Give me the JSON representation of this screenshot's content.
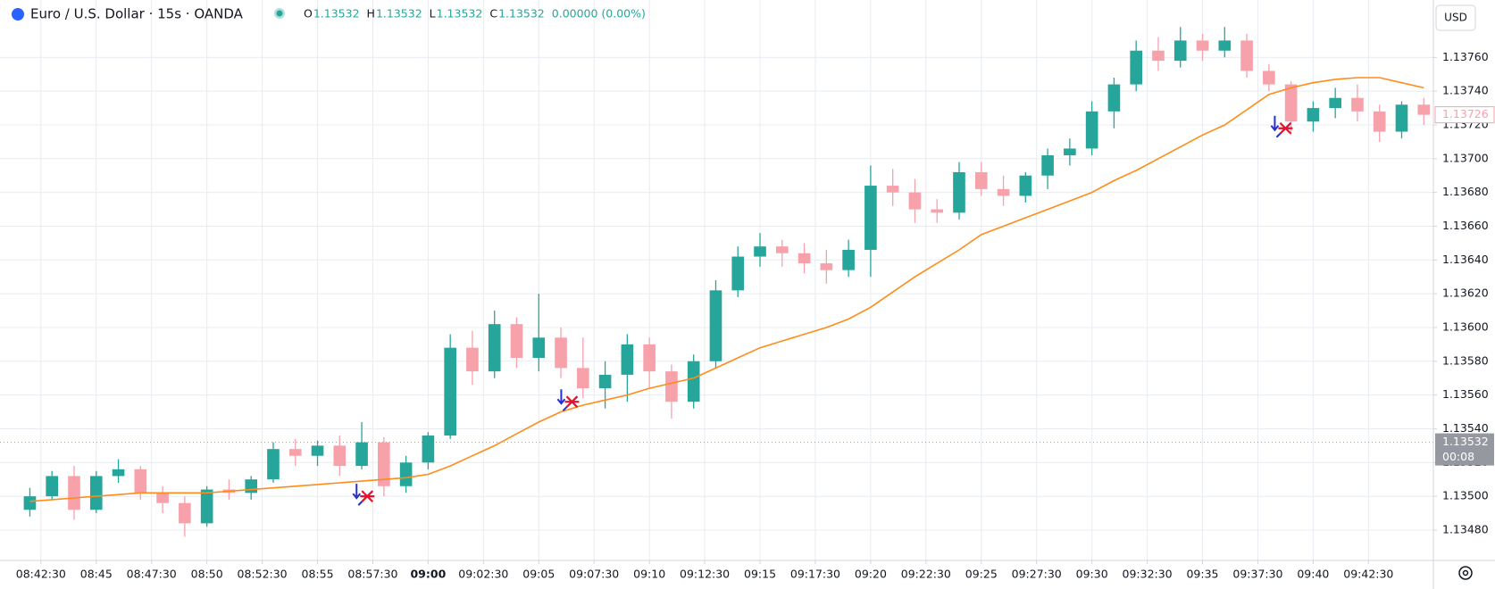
{
  "chart_data": {
    "type": "candlestick",
    "title": "Euro / U.S. Dollar · 15s · OANDA",
    "ohlc_header": [
      {
        "label": "O",
        "value": 1.13532
      },
      {
        "label": "H",
        "value": 1.13532
      },
      {
        "label": "L",
        "value": 1.13532
      },
      {
        "label": "C",
        "value": 1.13532
      }
    ],
    "change": "0.00000 (0.00%)",
    "currency": "USD",
    "up_color": "#26a69a",
    "down_color": "#f7a1ab",
    "xlim": [
      "08:40:39",
      "09:45:26"
    ],
    "ylim": [
      1.13462,
      1.13794
    ],
    "grid": true,
    "xticks": [
      "08:42:30",
      "08:45",
      "08:47:30",
      "08:50",
      "08:52:30",
      "08:55",
      "08:57:30",
      "09:00",
      "09:02:30",
      "09:05",
      "09:07:30",
      "09:10",
      "09:12:30",
      "09:15",
      "09:17:30",
      "09:20",
      "09:22:30",
      "09:25",
      "09:27:30",
      "09:30",
      "09:32:30",
      "09:35",
      "09:37:30",
      "09:40",
      "09:42:30"
    ],
    "yticks": [
      {
        "value": 1.1348,
        "label": "1.13480"
      },
      {
        "value": 1.135,
        "label": "1.13500"
      },
      {
        "value": 1.1352,
        "label": "1.13520"
      },
      {
        "value": 1.1354,
        "label": "1.13540"
      },
      {
        "value": 1.1356,
        "label": "1.13560"
      },
      {
        "value": 1.1358,
        "label": "1.13580"
      },
      {
        "value": 1.136,
        "label": "1.13600"
      },
      {
        "value": 1.1362,
        "label": "1.13620"
      },
      {
        "value": 1.1364,
        "label": "1.13640"
      },
      {
        "value": 1.1366,
        "label": "1.13660"
      },
      {
        "value": 1.1368,
        "label": "1.13680"
      },
      {
        "value": 1.137,
        "label": "1.13700"
      },
      {
        "value": 1.1372,
        "label": "1.13720"
      },
      {
        "value": 1.1374,
        "label": "1.13740"
      },
      {
        "value": 1.1376,
        "label": "1.13760"
      }
    ],
    "candles": {
      "x": [
        "08:42",
        "08:43",
        "08:44",
        "08:45",
        "08:46",
        "08:47",
        "08:48",
        "08:49",
        "08:50",
        "08:51",
        "08:52",
        "08:53",
        "08:54",
        "08:55",
        "08:56",
        "08:57",
        "08:58",
        "08:59",
        "09:00",
        "09:01",
        "09:02",
        "09:03",
        "09:04",
        "09:05",
        "09:06",
        "09:07",
        "09:08",
        "09:09",
        "09:10",
        "09:11",
        "09:12",
        "09:13",
        "09:14",
        "09:15",
        "09:16",
        "09:17",
        "09:18",
        "09:19",
        "09:20",
        "09:21",
        "09:22",
        "09:23",
        "09:24",
        "09:25",
        "09:26",
        "09:27",
        "09:28",
        "09:29",
        "09:30",
        "09:31",
        "09:32",
        "09:33",
        "09:34",
        "09:35",
        "09:36",
        "09:37",
        "09:38",
        "09:39",
        "09:40",
        "09:41",
        "09:42",
        "09:43",
        "09:44",
        "09:45"
      ],
      "open": [
        1.13492,
        1.135,
        1.13512,
        1.13492,
        1.13512,
        1.13516,
        1.13502,
        1.13496,
        1.13484,
        1.13504,
        1.13502,
        1.1351,
        1.13528,
        1.13524,
        1.1353,
        1.13518,
        1.13532,
        1.13506,
        1.1352,
        1.13536,
        1.13588,
        1.13574,
        1.13602,
        1.13582,
        1.13594,
        1.13576,
        1.13564,
        1.13572,
        1.1359,
        1.13574,
        1.13556,
        1.1358,
        1.13622,
        1.13642,
        1.13648,
        1.13644,
        1.13638,
        1.13634,
        1.13646,
        1.13684,
        1.1368,
        1.1367,
        1.13668,
        1.13692,
        1.13682,
        1.13678,
        1.1369,
        1.13702,
        1.13706,
        1.13728,
        1.13744,
        1.13764,
        1.13758,
        1.1377,
        1.13764,
        1.1377,
        1.13752,
        1.13744,
        1.13722,
        1.1373,
        1.13736,
        1.13728,
        1.13716,
        1.13732
      ],
      "high": [
        1.13505,
        1.13515,
        1.13518,
        1.13515,
        1.13522,
        1.13518,
        1.13506,
        1.135,
        1.13506,
        1.1351,
        1.13512,
        1.13532,
        1.13534,
        1.13533,
        1.13536,
        1.13544,
        1.13535,
        1.13524,
        1.13538,
        1.13596,
        1.13598,
        1.1361,
        1.13606,
        1.1362,
        1.136,
        1.13594,
        1.1358,
        1.13596,
        1.13594,
        1.13578,
        1.13584,
        1.13628,
        1.13648,
        1.13656,
        1.13652,
        1.1365,
        1.13646,
        1.13652,
        1.13696,
        1.13694,
        1.13688,
        1.13676,
        1.13698,
        1.13698,
        1.1369,
        1.13692,
        1.13706,
        1.13712,
        1.13734,
        1.13748,
        1.1377,
        1.13772,
        1.13778,
        1.13774,
        1.13778,
        1.13774,
        1.13756,
        1.13746,
        1.13734,
        1.13742,
        1.13744,
        1.13732,
        1.13734,
        1.13736
      ],
      "low": [
        1.13488,
        1.13498,
        1.13486,
        1.1349,
        1.13508,
        1.13498,
        1.1349,
        1.13476,
        1.13482,
        1.13498,
        1.13498,
        1.13508,
        1.13518,
        1.13518,
        1.13512,
        1.13516,
        1.135,
        1.13502,
        1.13516,
        1.13534,
        1.13566,
        1.1357,
        1.13576,
        1.13574,
        1.1357,
        1.13558,
        1.13552,
        1.13556,
        1.13564,
        1.13546,
        1.13552,
        1.13576,
        1.13618,
        1.13636,
        1.13636,
        1.13632,
        1.13626,
        1.1363,
        1.1363,
        1.13672,
        1.13662,
        1.13662,
        1.13664,
        1.13678,
        1.13672,
        1.13674,
        1.13682,
        1.13696,
        1.13702,
        1.13718,
        1.1374,
        1.13752,
        1.13754,
        1.13758,
        1.1376,
        1.13748,
        1.1374,
        1.13714,
        1.13716,
        1.13724,
        1.13722,
        1.1371,
        1.13712,
        1.1372
      ],
      "close": [
        1.135,
        1.13512,
        1.13492,
        1.13512,
        1.13516,
        1.13502,
        1.13496,
        1.13484,
        1.13504,
        1.13502,
        1.1351,
        1.13528,
        1.13524,
        1.1353,
        1.13518,
        1.13532,
        1.13506,
        1.1352,
        1.13536,
        1.13588,
        1.13574,
        1.13602,
        1.13582,
        1.13594,
        1.13576,
        1.13564,
        1.13572,
        1.1359,
        1.13574,
        1.13556,
        1.1358,
        1.13622,
        1.13642,
        1.13648,
        1.13644,
        1.13638,
        1.13634,
        1.13646,
        1.13684,
        1.1368,
        1.1367,
        1.13668,
        1.13692,
        1.13682,
        1.13678,
        1.1369,
        1.13702,
        1.13706,
        1.13728,
        1.13744,
        1.13764,
        1.13758,
        1.1377,
        1.13764,
        1.1377,
        1.13752,
        1.13744,
        1.13722,
        1.1373,
        1.13736,
        1.13728,
        1.13716,
        1.13732,
        1.13726
      ]
    },
    "ma": {
      "color": "#ff8c1a",
      "values": [
        1.13497,
        1.13498,
        1.13499,
        1.135,
        1.13501,
        1.13502,
        1.13502,
        1.13502,
        1.13502,
        1.13503,
        1.13504,
        1.13505,
        1.13506,
        1.13507,
        1.13508,
        1.13509,
        1.1351,
        1.13511,
        1.13513,
        1.13518,
        1.13524,
        1.1353,
        1.13537,
        1.13544,
        1.1355,
        1.13554,
        1.13557,
        1.1356,
        1.13564,
        1.13567,
        1.1357,
        1.13576,
        1.13582,
        1.13588,
        1.13592,
        1.13596,
        1.136,
        1.13605,
        1.13612,
        1.13621,
        1.1363,
        1.13638,
        1.13646,
        1.13655,
        1.1366,
        1.13665,
        1.1367,
        1.13675,
        1.1368,
        1.13687,
        1.13693,
        1.137,
        1.13707,
        1.13714,
        1.1372,
        1.13729,
        1.13738,
        1.13742,
        1.13745,
        1.13747,
        1.13748,
        1.13748,
        1.13745,
        1.13742
      ]
    },
    "signals": {
      "x": [
        "08:57:15",
        "09:06:30",
        "09:38:45"
      ],
      "values": [
        1.135,
        1.13556,
        1.13718
      ]
    },
    "price_line": {
      "value": 1.13532,
      "countdown": "00:08",
      "color": "#9598a1"
    },
    "last_price": {
      "value": 1.13726,
      "color": "#f7a1ab"
    }
  }
}
